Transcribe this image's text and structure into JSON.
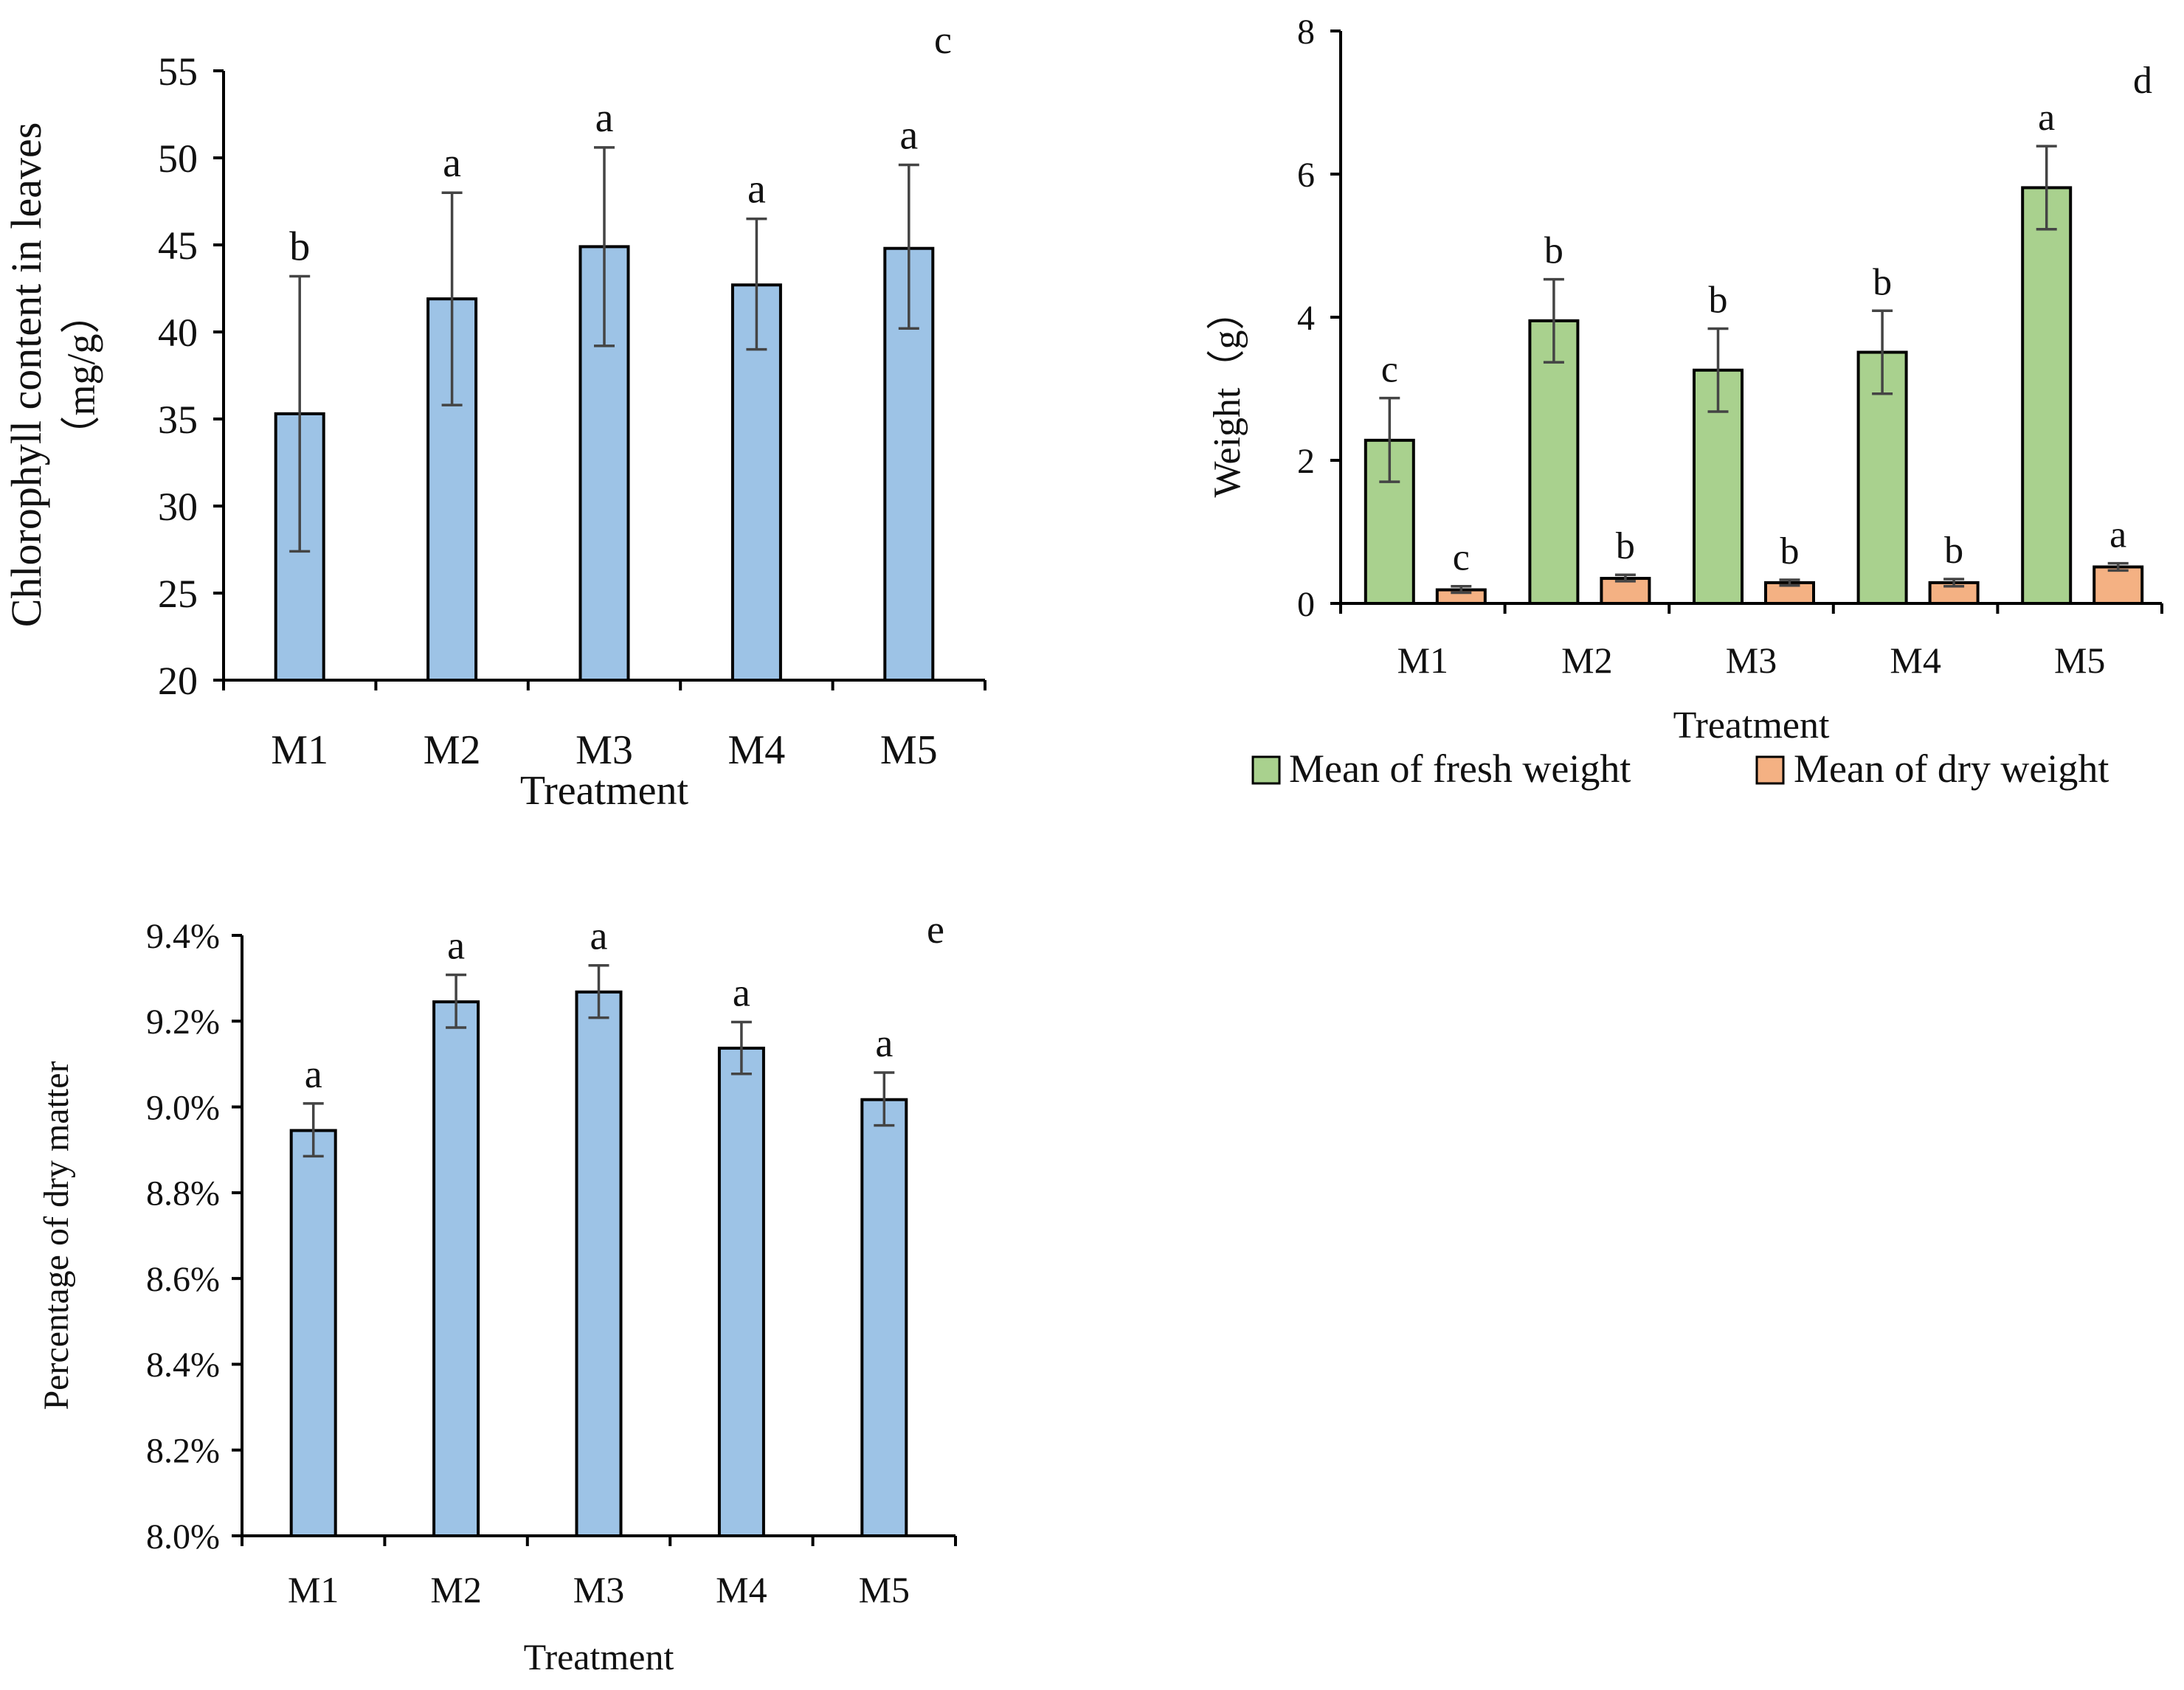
{
  "colors": {
    "blue_bar": "#9dc3e6",
    "green_bar": "#a9d18e",
    "orange_bar": "#f4b183",
    "error_bar": "#444444",
    "axis": "#000000"
  },
  "chart_data": [
    {
      "id": "chart-c",
      "type": "bar",
      "panel_label": "c",
      "title": "",
      "xlabel": "Treatment",
      "ylabel_lines": [
        "Chlorophyll content in leaves",
        "（mg/g）"
      ],
      "categories": [
        "M1",
        "M2",
        "M3",
        "M4",
        "M5"
      ],
      "ylim": [
        20,
        55
      ],
      "yticks": [
        20,
        25,
        30,
        35,
        40,
        45,
        50,
        55
      ],
      "ytick_labels": [
        "20",
        "25",
        "30",
        "35",
        "40",
        "45",
        "50",
        "55"
      ],
      "grid": false,
      "series": [
        {
          "name": "Chlorophyll content",
          "color": "#9dc3e6",
          "values": [
            35.3,
            41.9,
            44.9,
            42.7,
            44.8
          ],
          "err_low": [
            27.4,
            35.8,
            39.2,
            39.0,
            40.2
          ],
          "err_high": [
            43.2,
            48.0,
            50.6,
            46.5,
            49.6
          ],
          "labels": [
            "b",
            "a",
            "a",
            "a",
            "a"
          ]
        }
      ]
    },
    {
      "id": "chart-d",
      "type": "bar",
      "panel_label": "d",
      "title": "",
      "xlabel": "Treatment",
      "ylabel_lines": [
        "Weight（g）"
      ],
      "categories": [
        "M1",
        "M2",
        "M3",
        "M4",
        "M5"
      ],
      "ylim": [
        0,
        8
      ],
      "yticks": [
        0,
        2,
        4,
        6,
        8
      ],
      "ytick_labels": [
        "0",
        "2",
        "4",
        "6",
        "8"
      ],
      "grid": false,
      "legend_position": "bottom",
      "series": [
        {
          "name": "Mean of fresh weight",
          "color": "#a9d18e",
          "values": [
            2.28,
            3.95,
            3.26,
            3.51,
            5.81
          ],
          "err_low": [
            1.7,
            3.37,
            2.68,
            2.93,
            5.23
          ],
          "err_high": [
            2.87,
            4.53,
            3.84,
            4.09,
            6.39
          ],
          "labels": [
            "c",
            "b",
            "b",
            "b",
            "a"
          ]
        },
        {
          "name": "Mean of dry weight",
          "color": "#f4b183",
          "values": [
            0.19,
            0.35,
            0.29,
            0.29,
            0.51
          ],
          "err_low": [
            0.15,
            0.31,
            0.25,
            0.24,
            0.46
          ],
          "err_high": [
            0.24,
            0.4,
            0.33,
            0.34,
            0.56
          ],
          "labels": [
            "c",
            "b",
            "b",
            "b",
            "a"
          ]
        }
      ]
    },
    {
      "id": "chart-e",
      "type": "bar",
      "panel_label": "e",
      "title": "",
      "xlabel": "Treatment",
      "ylabel_lines": [
        "Percentage of dry matter"
      ],
      "categories": [
        "M1",
        "M2",
        "M3",
        "M4",
        "M5"
      ],
      "ylim": [
        8.0,
        9.4
      ],
      "yticks": [
        8.0,
        8.2,
        8.4,
        8.6,
        8.8,
        9.0,
        9.2,
        9.4
      ],
      "ytick_labels": [
        "8.0%",
        "8.2%",
        "8.4%",
        "8.6%",
        "8.8%",
        "9.0%",
        "9.2%",
        "9.4%"
      ],
      "grid": false,
      "series": [
        {
          "name": "Percentage of dry matter",
          "color": "#9dc3e6",
          "values": [
            8.945,
            9.245,
            9.268,
            9.137,
            9.017
          ],
          "err_low": [
            8.885,
            9.185,
            9.208,
            9.077,
            8.957
          ],
          "err_high": [
            9.008,
            9.308,
            9.33,
            9.198,
            9.08
          ],
          "labels": [
            "a",
            "a",
            "a",
            "a",
            "a"
          ]
        }
      ]
    }
  ]
}
